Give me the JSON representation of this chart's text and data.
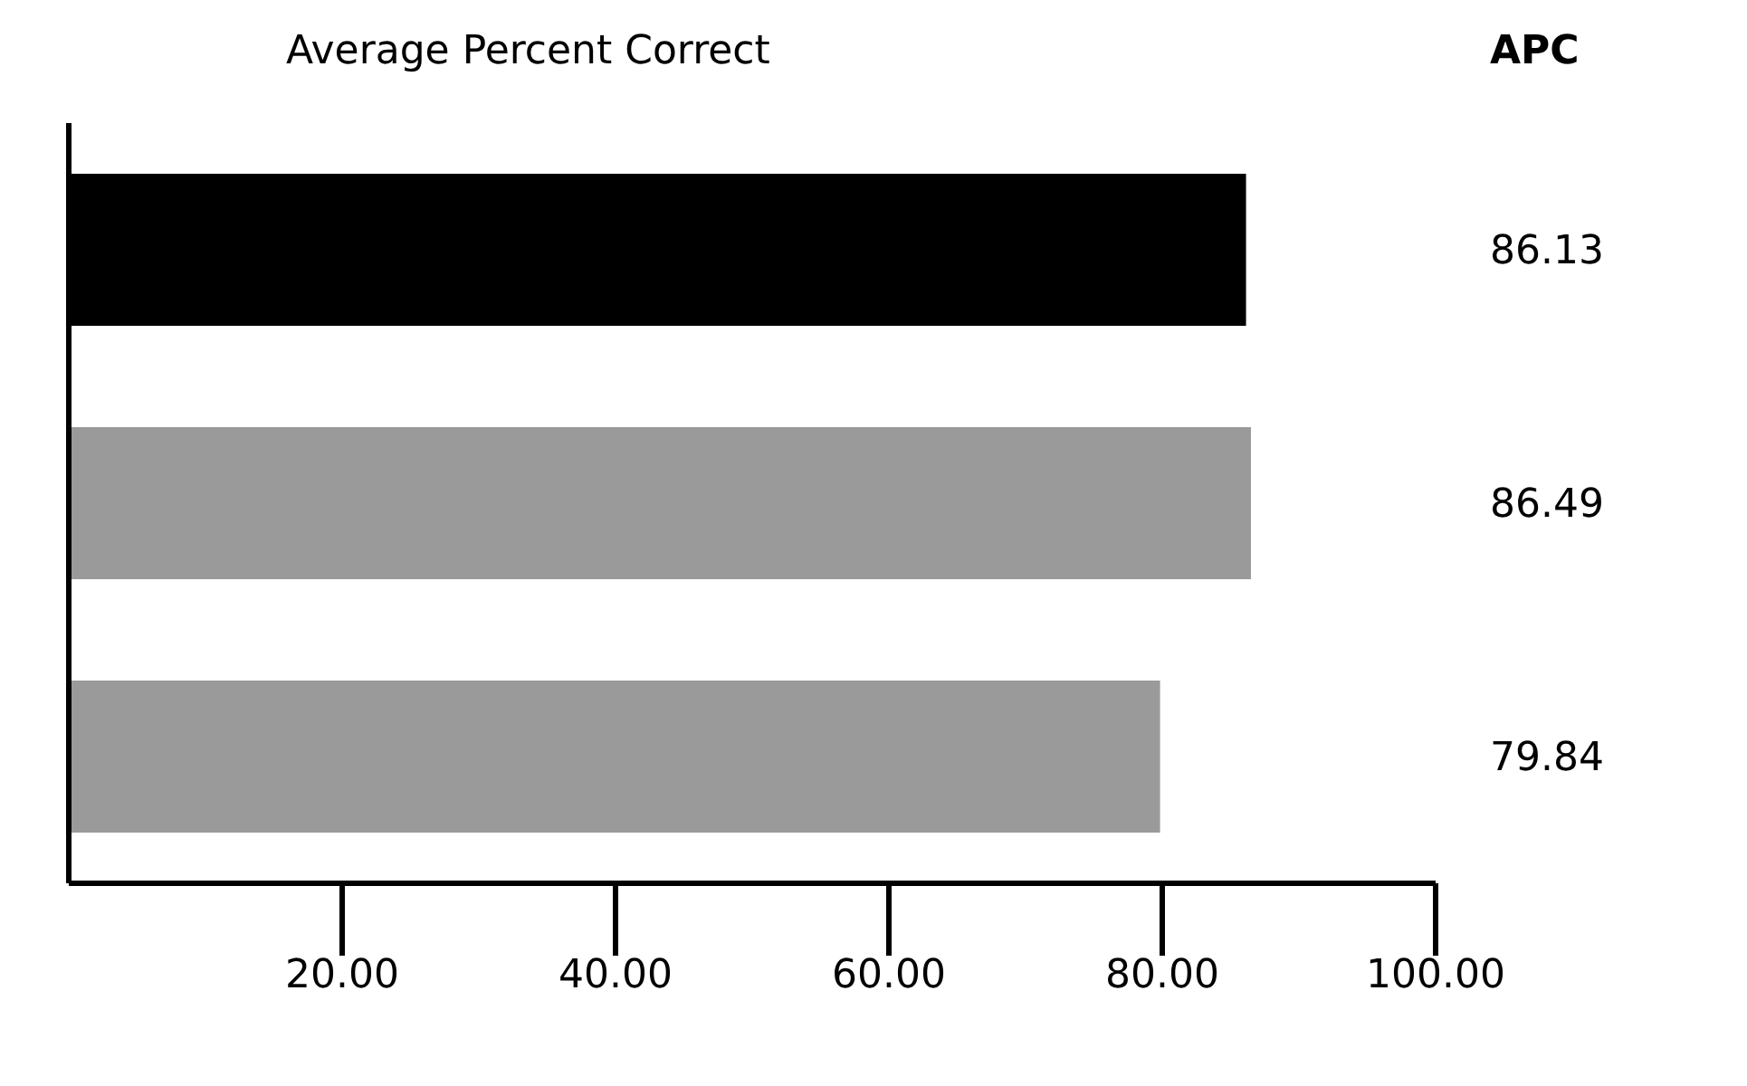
{
  "chart_data": {
    "type": "bar",
    "orientation": "horizontal",
    "title": "Average Percent Correct",
    "annotations": [
      "APC"
    ],
    "categories": [
      null,
      null,
      null
    ],
    "values": [
      86.13,
      86.49,
      79.84
    ],
    "colors": [
      "#000000",
      "#9a9a9a",
      "#9a9a9a"
    ],
    "data_labels": true,
    "xlim": [
      0,
      100
    ],
    "xticks": [
      {
        "value": 20,
        "label": "20.00"
      },
      {
        "value": 40,
        "label": "40.00"
      },
      {
        "value": 60,
        "label": "60.00"
      },
      {
        "value": 80,
        "label": "80.00"
      },
      {
        "value": 100,
        "label": "100.00"
      }
    ],
    "grid": false,
    "legend": false
  }
}
